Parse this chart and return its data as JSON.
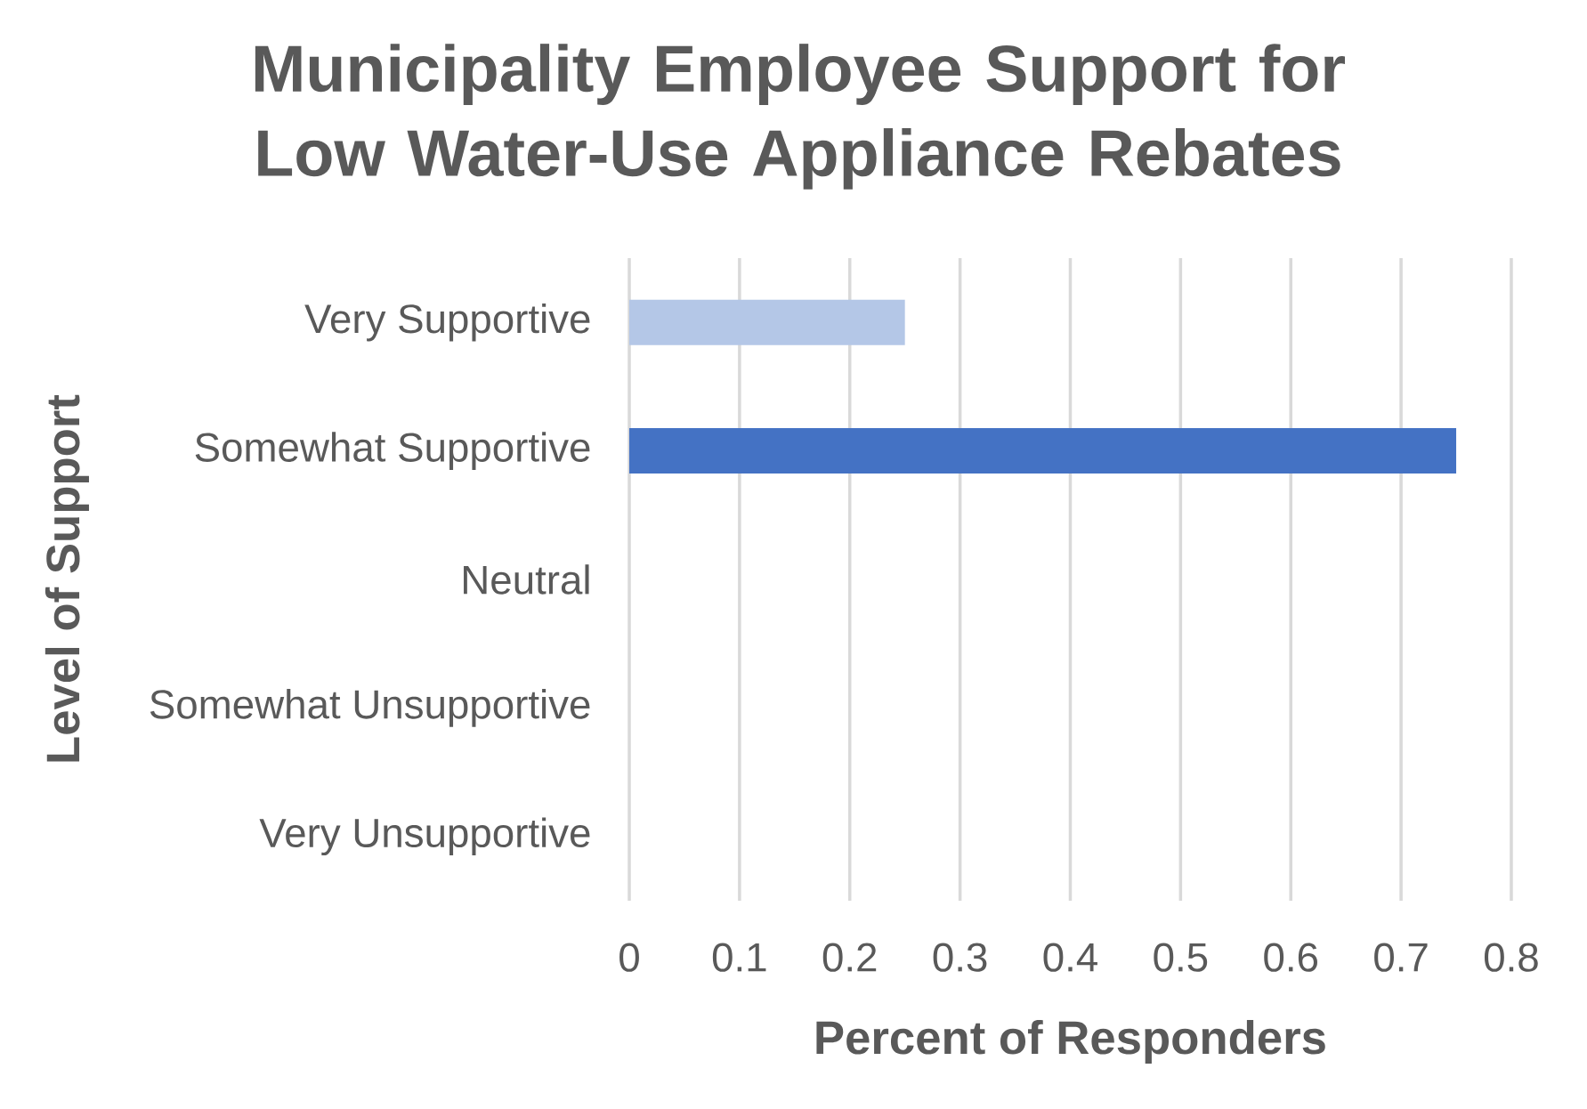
{
  "chart_data": {
    "type": "bar",
    "orientation": "horizontal",
    "title": "Municipality Employee Support for Low Water-Use Appliance Rebates",
    "xlabel": "Percent of Responders",
    "ylabel": "Level of Support",
    "categories": [
      "Very Supportive",
      "Somewhat Supportive",
      "Neutral",
      "Somewhat Unsupportive",
      "Very Unsupportive"
    ],
    "values": [
      0.25,
      0.75,
      0,
      0,
      0
    ],
    "colors": [
      "#b4c7e7",
      "#4472c4",
      "#4472c4",
      "#4472c4",
      "#4472c4"
    ],
    "xlim": [
      0,
      0.8
    ],
    "xticks": [
      0,
      0.1,
      0.2,
      0.3,
      0.4,
      0.5,
      0.6,
      0.7,
      0.8
    ],
    "grid": "x"
  }
}
